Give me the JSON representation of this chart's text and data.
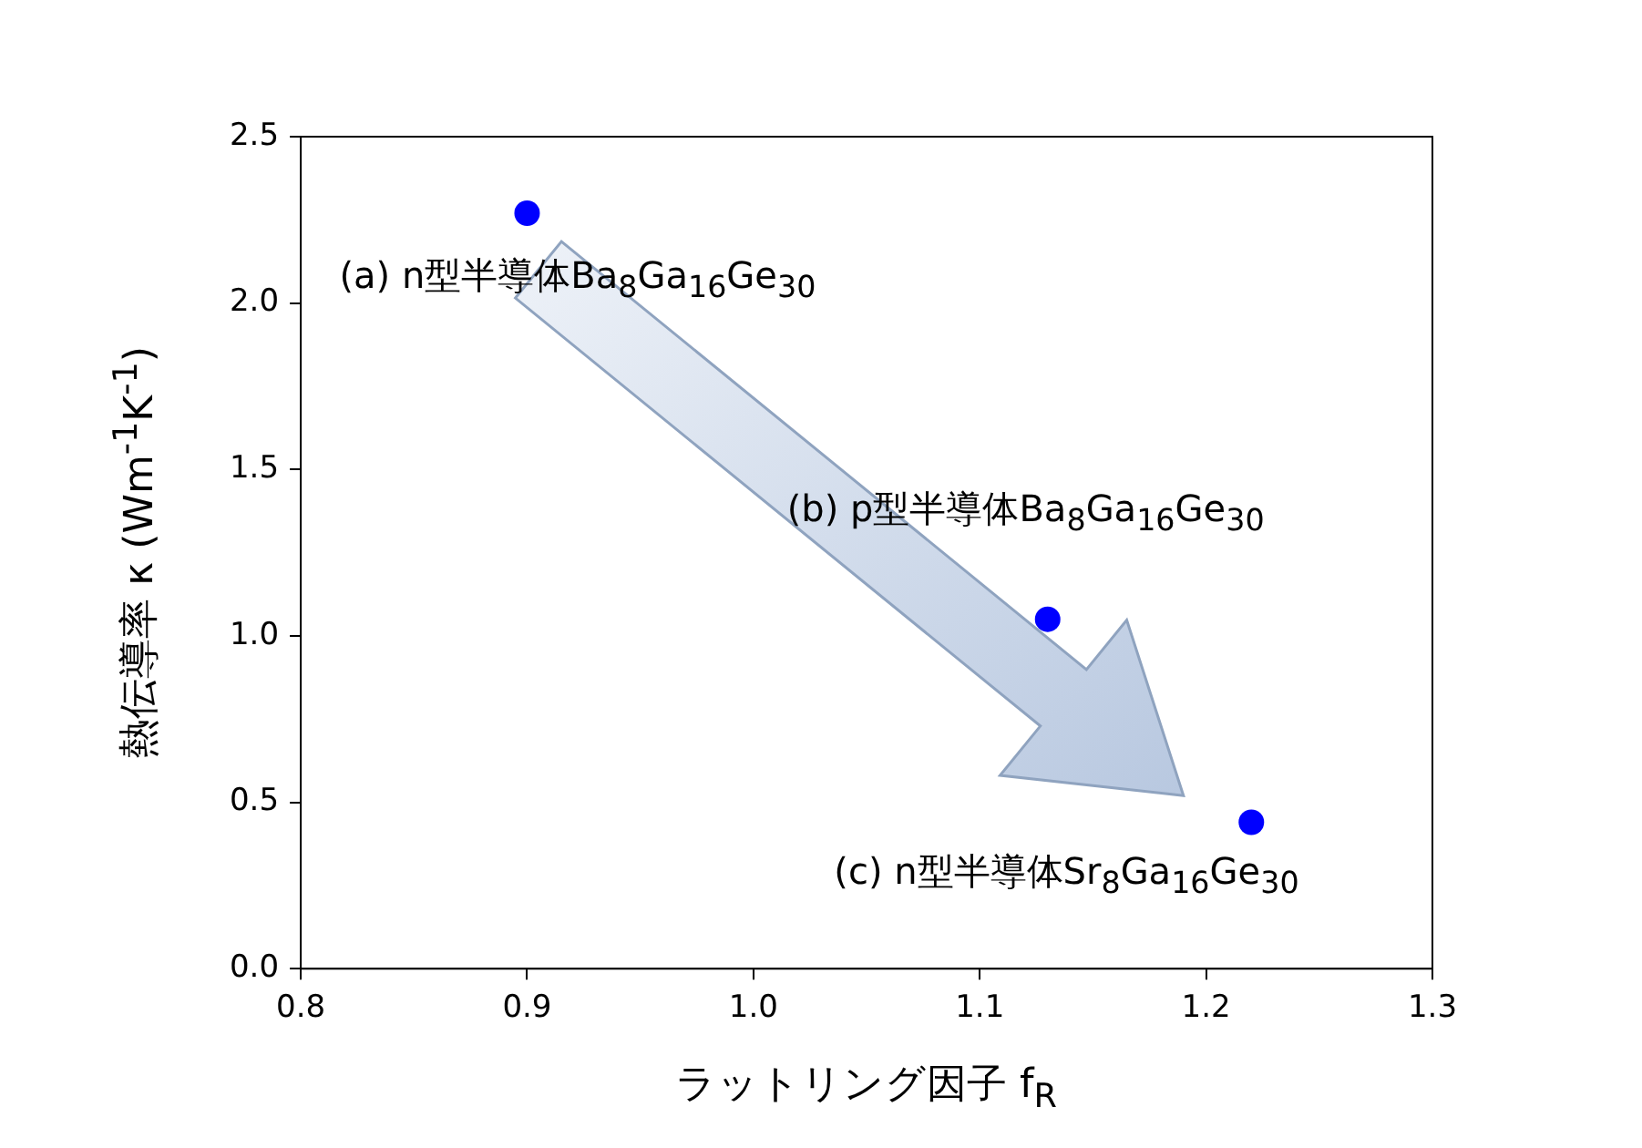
{
  "chart_data": {
    "type": "scatter",
    "xlabel": "ラットリング因子 f$_{R}$",
    "ylabel": "熱伝導率 κ (Wm$^{-1}$K$^{-1}$)",
    "x": [
      0.9,
      1.13,
      1.22
    ],
    "series": [
      {
        "color": "#0000ff",
        "values": [
          2.27,
          1.05,
          0.44
        ]
      }
    ],
    "marker": "circle",
    "grid": false,
    "legend": false,
    "xlim": [
      0.8,
      1.3
    ],
    "xticks": [
      0.8,
      0.9,
      {
        "value": 1,
        "label": "1.0"
      },
      1.1,
      1.2,
      1.3
    ],
    "ylim": [
      0,
      2.5
    ],
    "yticks": [
      {
        "value": 0,
        "label": "0.0"
      },
      0.5,
      {
        "value": 1,
        "label": "1.0"
      },
      1.5,
      {
        "value": 2,
        "label": "2.0"
      },
      2.5
    ],
    "annotations": [
      {
        "text": "(a) n型半導体Ba$_{8}$Ga$_{16}$Ge$_{30}$",
        "x": 0.9,
        "y": 2.27
      },
      {
        "text": "(b) p型半導体Ba$_{8}$Ga$_{16}$Ge$_{30}$",
        "x": 1.13,
        "y": 1.05
      },
      {
        "text": "(c) n型半導体Sr$_{8}$Ga$_{16}$Ge$_{30}$",
        "x": 1.22,
        "y": 0.44
      }
    ]
  }
}
